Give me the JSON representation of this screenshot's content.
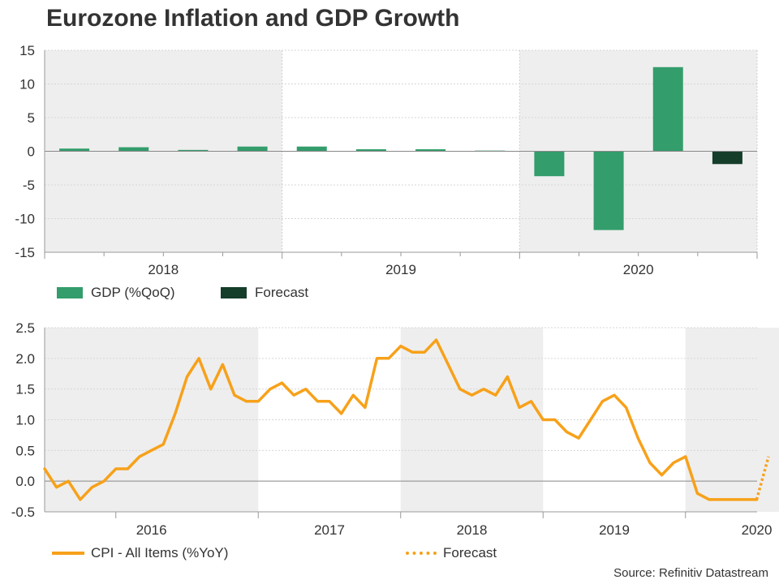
{
  "title": "Eurozone Inflation and GDP Growth",
  "source": "Source: Refinitiv Datastream",
  "colors": {
    "gdp": "#339d6b",
    "gdp_forecast": "#143d2a",
    "cpi": "#f7a11a",
    "shade": "#eeeeee",
    "text": "#333333"
  },
  "chart_data": [
    {
      "type": "bar",
      "title": "Eurozone Inflation and GDP Growth",
      "ylabel": "",
      "xlabel": "",
      "ylim": [
        -15,
        15
      ],
      "yticks": [
        15,
        10,
        5,
        0,
        -5,
        -10,
        -15
      ],
      "grid": true,
      "categories": [
        "2018 Q1",
        "2018 Q2",
        "2018 Q3",
        "2018 Q4",
        "2019 Q1",
        "2019 Q2",
        "2019 Q3",
        "2019 Q4",
        "2020 Q1",
        "2020 Q2",
        "2020 Q3",
        "2020 Q4"
      ],
      "year_labels": [
        "2018",
        "2019",
        "2020"
      ],
      "series": [
        {
          "name": "GDP (%QoQ)",
          "values": [
            0.4,
            0.6,
            0.2,
            0.7,
            0.7,
            0.3,
            0.3,
            0.1,
            -3.7,
            -11.7,
            12.5,
            null
          ]
        },
        {
          "name": "Forecast",
          "values": [
            null,
            null,
            null,
            null,
            null,
            null,
            null,
            null,
            null,
            null,
            null,
            -1.9
          ]
        }
      ],
      "legend": {
        "gdp": "GDP (%QoQ)",
        "forecast": "Forecast"
      }
    },
    {
      "type": "line",
      "ylabel": "",
      "xlabel": "",
      "ylim": [
        -0.5,
        2.5
      ],
      "yticks": [
        2.5,
        2.0,
        1.5,
        1.0,
        0.5,
        0.0,
        -0.5
      ],
      "ytick_labels": [
        "2.5",
        "2.0",
        "1.5",
        "1.0",
        "0.5",
        "0.0",
        "-0.5"
      ],
      "grid": true,
      "start": "2015-07",
      "year_labels": [
        "2016",
        "2017",
        "2018",
        "2019",
        "2020"
      ],
      "series": [
        {
          "name": "CPI - All Items (%YoY)",
          "values": [
            0.2,
            -0.1,
            0.0,
            -0.3,
            -0.1,
            0.0,
            0.2,
            0.2,
            0.4,
            0.5,
            0.6,
            1.1,
            1.7,
            2.0,
            1.5,
            1.9,
            1.4,
            1.3,
            1.3,
            1.5,
            1.6,
            1.4,
            1.5,
            1.3,
            1.3,
            1.1,
            1.4,
            1.2,
            2.0,
            2.0,
            2.2,
            2.1,
            2.1,
            2.3,
            1.9,
            1.5,
            1.4,
            1.5,
            1.4,
            1.7,
            1.2,
            1.3,
            1.0,
            1.0,
            0.8,
            0.7,
            1.0,
            1.3,
            1.4,
            1.2,
            0.7,
            0.3,
            0.1,
            0.3,
            0.4,
            -0.2,
            -0.3,
            -0.3,
            -0.3,
            -0.3,
            -0.3
          ]
        },
        {
          "name": "Forecast",
          "values": [
            -0.3,
            0.4
          ]
        }
      ],
      "legend": {
        "cpi": "CPI - All Items (%YoY)",
        "forecast": "Forecast"
      }
    }
  ]
}
